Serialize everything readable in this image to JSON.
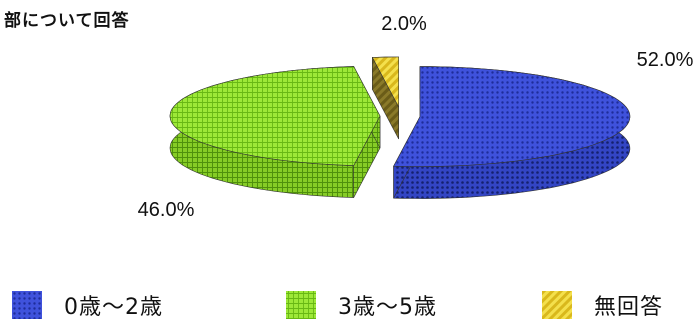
{
  "chart_data": {
    "type": "pie",
    "title": "部について回答",
    "categories": [
      "0歳～2歳",
      "3歳～5歳",
      "無回答"
    ],
    "values": [
      52.0,
      46.0,
      2.0
    ],
    "data_labels": [
      "52.0%",
      "46.0%",
      "2.0%"
    ],
    "legend_placement": "bottom",
    "three_d": true,
    "exploded": true,
    "colors": [
      "#3c4fd6",
      "#8fe12a",
      "#ecd740"
    ]
  }
}
